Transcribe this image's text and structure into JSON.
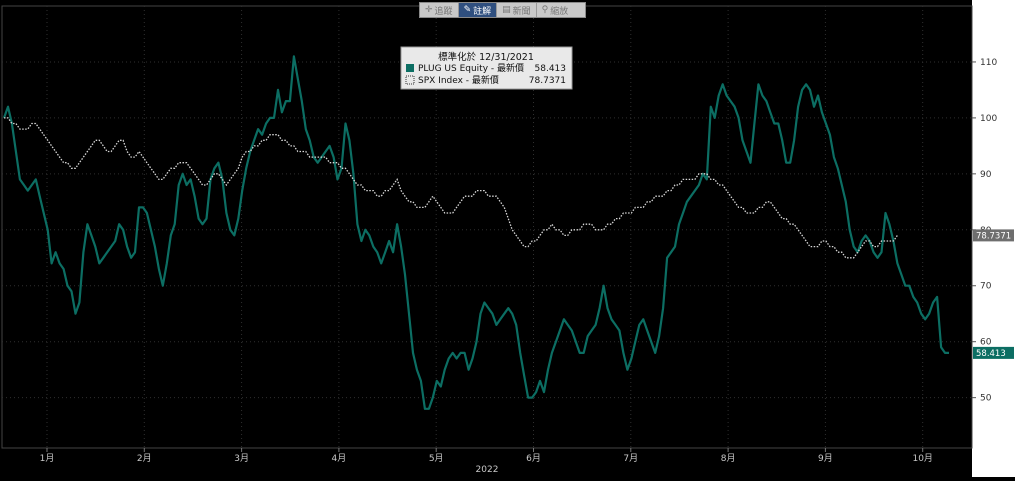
{
  "toolbar": [
    {
      "icon": "crosshair-icon",
      "glyph": "✛",
      "label": "追蹤",
      "active": false
    },
    {
      "icon": "pencil-icon",
      "glyph": "✎",
      "label": "註解",
      "active": true
    },
    {
      "icon": "table-icon",
      "glyph": "▤",
      "label": "新聞",
      "active": false
    },
    {
      "icon": "search-icon",
      "glyph": "⚲",
      "label": "縮放",
      "active": false
    }
  ],
  "colors": {
    "plug": "#0c6e63",
    "spx": "#d8d8d8",
    "axis_text": "#c8c8c8",
    "grid": "#2f2f2f",
    "plot_bg": "#000000",
    "axis_bg": "#ffffff"
  },
  "legend": {
    "title": "標準化於 12/31/2021",
    "rows": [
      {
        "name": "PLUG US Equity - 最新價",
        "value": "58.413",
        "style": "solid"
      },
      {
        "name": "SPX Index - 最新價",
        "value": "78.7371",
        "style": "dotted"
      }
    ]
  },
  "chart_data": {
    "type": "line",
    "title": "",
    "x_period_label": "2022",
    "xticks": [
      "1月",
      "2月",
      "3月",
      "4月",
      "5月",
      "6月",
      "7月",
      "8月",
      "9月",
      "10月"
    ],
    "ylim": [
      41,
      120
    ],
    "yticks": [
      50,
      60,
      70,
      80,
      90,
      100,
      110
    ],
    "grid": true,
    "legend_position": "top-center",
    "last_labels": [
      "58.413",
      "78.7371"
    ],
    "series": [
      {
        "name": "PLUG US Equity - 最新價",
        "style": "solid",
        "values": [
          100,
          102,
          99,
          94,
          89,
          88,
          87,
          88,
          89,
          86,
          83,
          80,
          74,
          76,
          74,
          73,
          70,
          69,
          65,
          67,
          76,
          81,
          79,
          77,
          74,
          75,
          76,
          77,
          78,
          81,
          80,
          77,
          75,
          76,
          84,
          84,
          83,
          80,
          77,
          73,
          70,
          74,
          79,
          81,
          88,
          90,
          88,
          89,
          86,
          82,
          81,
          82,
          89,
          91,
          92,
          89,
          83,
          80,
          79,
          82,
          87,
          91,
          94,
          96,
          98,
          97,
          99,
          100,
          100,
          105,
          101,
          103,
          103,
          111,
          107,
          103,
          98,
          96,
          93,
          92,
          93,
          94,
          95,
          93,
          89,
          91,
          99,
          96,
          90,
          81,
          78,
          80,
          79,
          77,
          76,
          74,
          76,
          78,
          76,
          81,
          77,
          72,
          65,
          58,
          55,
          53,
          48,
          48,
          50,
          53,
          52,
          55,
          57,
          58,
          57,
          58,
          58,
          55,
          57,
          60,
          65,
          67,
          66,
          65,
          63,
          64,
          65,
          66,
          65,
          63,
          58,
          54,
          50,
          50,
          51,
          53,
          51,
          55,
          58,
          60,
          62,
          64,
          63,
          62,
          60,
          58,
          58,
          61,
          62,
          63,
          66,
          70,
          66,
          64,
          63,
          62,
          58,
          55,
          57,
          60,
          63,
          64,
          62,
          60,
          58,
          61,
          66,
          75,
          76,
          77,
          81,
          83,
          85,
          86,
          87,
          88,
          90,
          89,
          102,
          100,
          104,
          106,
          104,
          103,
          102,
          100,
          96,
          94,
          92,
          99,
          106,
          104,
          103,
          101,
          99,
          99,
          96,
          92,
          92,
          96,
          102,
          105,
          106,
          105,
          102,
          104,
          101,
          99,
          97,
          93,
          91,
          88,
          85,
          80,
          77,
          76,
          78,
          79,
          78,
          76,
          75,
          76,
          83,
          81,
          78,
          74,
          72,
          70,
          70,
          68,
          67,
          65,
          64,
          65,
          67,
          68,
          59,
          58,
          58
        ]
      },
      {
        "name": "SPX Index - 最新價",
        "style": "dotted",
        "values": [
          100,
          100,
          99,
          99,
          98,
          98,
          98,
          99,
          99,
          98,
          97,
          96,
          95,
          94,
          93,
          92,
          92,
          91,
          91,
          92,
          93,
          94,
          95,
          96,
          96,
          95,
          94,
          94,
          95,
          96,
          96,
          94,
          93,
          93,
          94,
          93,
          92,
          91,
          90,
          89,
          89,
          90,
          91,
          91,
          92,
          92,
          92,
          91,
          90,
          89,
          88,
          88,
          89,
          90,
          90,
          89,
          88,
          89,
          90,
          91,
          93,
          94,
          94,
          95,
          95,
          96,
          96,
          97,
          97,
          97,
          96,
          96,
          95,
          95,
          94,
          94,
          94,
          93,
          93,
          93,
          93,
          93,
          92,
          92,
          92,
          91,
          91,
          90,
          89,
          88,
          88,
          87,
          87,
          87,
          86,
          86,
          87,
          87,
          88,
          89,
          87,
          86,
          85,
          85,
          84,
          84,
          84,
          85,
          86,
          85,
          84,
          83,
          83,
          83,
          84,
          85,
          86,
          86,
          86,
          87,
          87,
          87,
          86,
          86,
          86,
          85,
          84,
          82,
          80,
          79,
          78,
          77,
          77,
          78,
          78,
          79,
          80,
          80,
          81,
          80,
          80,
          79,
          79,
          80,
          80,
          80,
          81,
          81,
          81,
          80,
          80,
          80,
          81,
          81,
          82,
          82,
          83,
          83,
          83,
          84,
          84,
          84,
          85,
          85,
          86,
          86,
          86,
          87,
          87,
          88,
          88,
          89,
          89,
          89,
          89,
          90,
          90,
          90,
          89,
          89,
          88,
          88,
          87,
          86,
          85,
          84,
          84,
          83,
          83,
          83,
          84,
          84,
          85,
          85,
          84,
          83,
          82,
          82,
          81,
          81,
          80,
          79,
          78,
          77,
          77,
          77,
          78,
          78,
          77,
          77,
          76,
          76,
          75,
          75,
          75,
          76,
          77,
          78,
          78,
          77,
          77,
          78,
          78,
          78,
          78,
          79
        ]
      }
    ]
  }
}
